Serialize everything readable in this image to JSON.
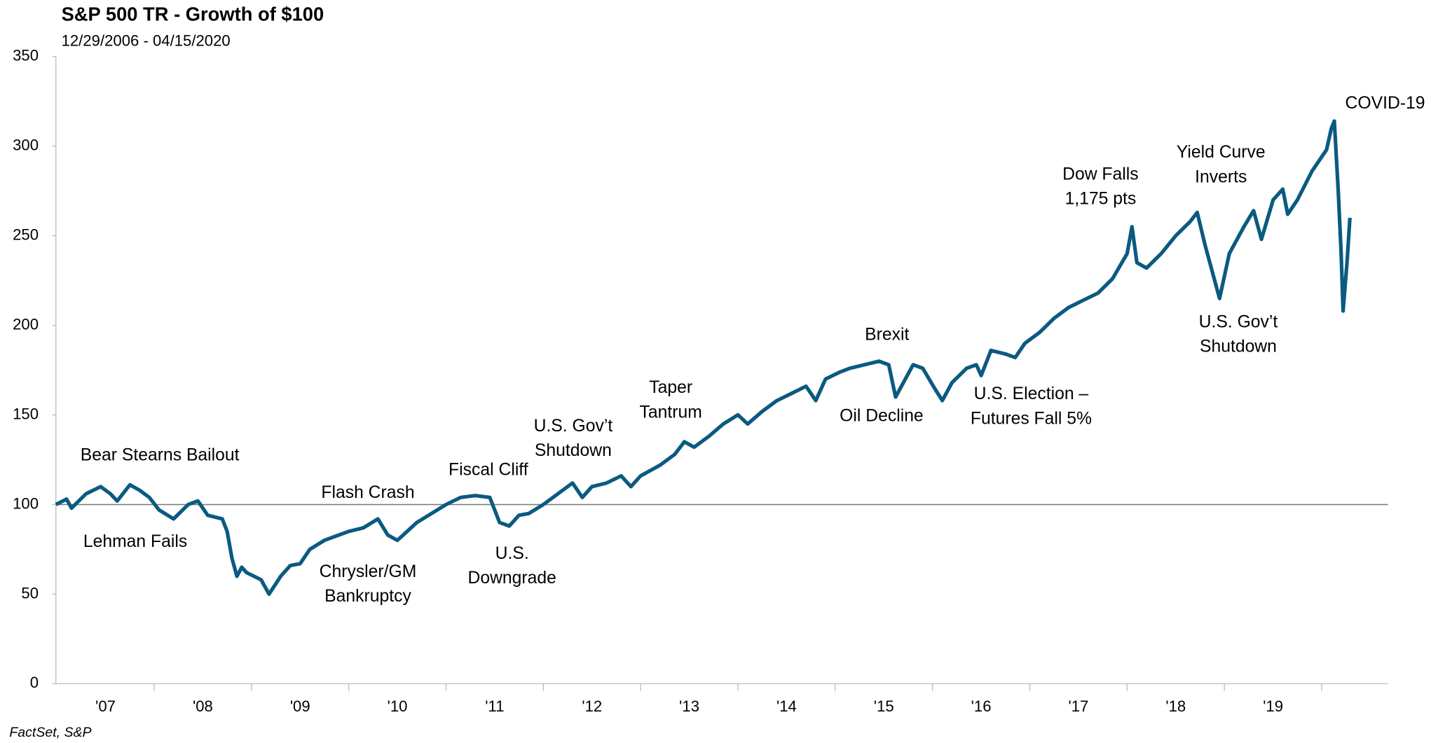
{
  "chart_data": {
    "type": "line",
    "title": "S&P 500 TR - Growth of $100",
    "subtitle": "12/29/2006 - 04/15/2020",
    "source": "FactSet, S&P",
    "x": [
      2006.99,
      2007.1,
      2007.15,
      2007.3,
      2007.45,
      2007.55,
      2007.62,
      2007.75,
      2007.85,
      2007.95,
      2008.05,
      2008.2,
      2008.35,
      2008.45,
      2008.55,
      2008.7,
      2008.75,
      2008.8,
      2008.85,
      2008.9,
      2008.95,
      2009.1,
      2009.18,
      2009.3,
      2009.4,
      2009.5,
      2009.6,
      2009.75,
      2009.9,
      2010.0,
      2010.15,
      2010.3,
      2010.4,
      2010.5,
      2010.6,
      2010.7,
      2010.85,
      2011.0,
      2011.15,
      2011.3,
      2011.45,
      2011.55,
      2011.65,
      2011.75,
      2011.85,
      2012.0,
      2012.2,
      2012.3,
      2012.4,
      2012.5,
      2012.65,
      2012.8,
      2012.9,
      2013.0,
      2013.2,
      2013.35,
      2013.45,
      2013.55,
      2013.7,
      2013.85,
      2014.0,
      2014.1,
      2014.25,
      2014.4,
      2014.55,
      2014.7,
      2014.8,
      2014.9,
      2015.05,
      2015.15,
      2015.3,
      2015.45,
      2015.55,
      2015.62,
      2015.7,
      2015.8,
      2015.9,
      2016.02,
      2016.1,
      2016.2,
      2016.35,
      2016.45,
      2016.5,
      2016.6,
      2016.75,
      2016.85,
      2016.95,
      2017.1,
      2017.25,
      2017.4,
      2017.55,
      2017.7,
      2017.85,
      2018.0,
      2018.05,
      2018.1,
      2018.2,
      2018.35,
      2018.5,
      2018.65,
      2018.72,
      2018.8,
      2018.95,
      2019.05,
      2019.2,
      2019.3,
      2019.38,
      2019.5,
      2019.6,
      2019.65,
      2019.75,
      2019.9,
      2020.05,
      2020.1,
      2020.13,
      2020.17,
      2020.2,
      2020.22,
      2020.26,
      2020.29
    ],
    "series": [
      {
        "name": "S&P 500 TR",
        "color": "#0b5a80",
        "values": [
          100,
          103,
          98,
          106,
          110,
          106,
          102,
          111,
          108,
          104,
          97,
          92,
          100,
          102,
          94,
          92,
          85,
          70,
          60,
          65,
          62,
          58,
          50,
          60,
          66,
          67,
          75,
          80,
          83,
          85,
          87,
          92,
          83,
          80,
          85,
          90,
          95,
          100,
          104,
          105,
          104,
          90,
          88,
          94,
          95,
          100,
          108,
          112,
          104,
          110,
          112,
          116,
          110,
          116,
          122,
          128,
          135,
          132,
          138,
          145,
          150,
          145,
          152,
          158,
          162,
          166,
          158,
          170,
          174,
          176,
          178,
          180,
          178,
          160,
          168,
          178,
          176,
          165,
          158,
          168,
          176,
          178,
          172,
          186,
          184,
          182,
          190,
          196,
          204,
          210,
          214,
          218,
          226,
          240,
          255,
          235,
          232,
          240,
          250,
          258,
          263,
          245,
          215,
          240,
          255,
          264,
          248,
          270,
          276,
          262,
          270,
          286,
          298,
          310,
          314,
          275,
          240,
          208,
          235,
          260
        ]
      }
    ],
    "xlim": [
      2006.99,
      2020.68
    ],
    "xticks": [
      {
        "value": 2007.5,
        "label": "'07"
      },
      {
        "value": 2008.5,
        "label": "'08"
      },
      {
        "value": 2009.5,
        "label": "'09"
      },
      {
        "value": 2010.5,
        "label": "'10"
      },
      {
        "value": 2011.5,
        "label": "'11"
      },
      {
        "value": 2012.5,
        "label": "'12"
      },
      {
        "value": 2013.5,
        "label": "'13"
      },
      {
        "value": 2014.5,
        "label": "'14"
      },
      {
        "value": 2015.5,
        "label": "'15"
      },
      {
        "value": 2016.5,
        "label": "'16"
      },
      {
        "value": 2017.5,
        "label": "'17"
      },
      {
        "value": 2018.5,
        "label": "'18"
      },
      {
        "value": 2019.5,
        "label": "'19"
      }
    ],
    "ylim": [
      0,
      350
    ],
    "yticks": [
      0,
      50,
      100,
      150,
      200,
      250,
      300,
      350
    ],
    "reference_line": 100,
    "annotations": [
      [
        "Bear Stearns Bailout"
      ],
      [
        "Lehman Fails"
      ],
      [
        "Flash Crash"
      ],
      [
        "Chrysler/GM",
        "Bankruptcy"
      ],
      [
        "Fiscal Cliff"
      ],
      [
        "U.S.",
        "Downgrade"
      ],
      [
        "U.S. Gov’t",
        "Shutdown"
      ],
      [
        "Taper",
        "Tantrum"
      ],
      [
        "Brexit"
      ],
      [
        "Oil Decline"
      ],
      [
        "U.S. Election –",
        "Futures Fall 5%"
      ],
      [
        "Dow Falls",
        "1,175 pts"
      ],
      [
        "Yield Curve",
        "Inverts"
      ],
      [
        "U.S. Gov’t",
        "Shutdown"
      ],
      [
        "COVID-19"
      ]
    ]
  }
}
